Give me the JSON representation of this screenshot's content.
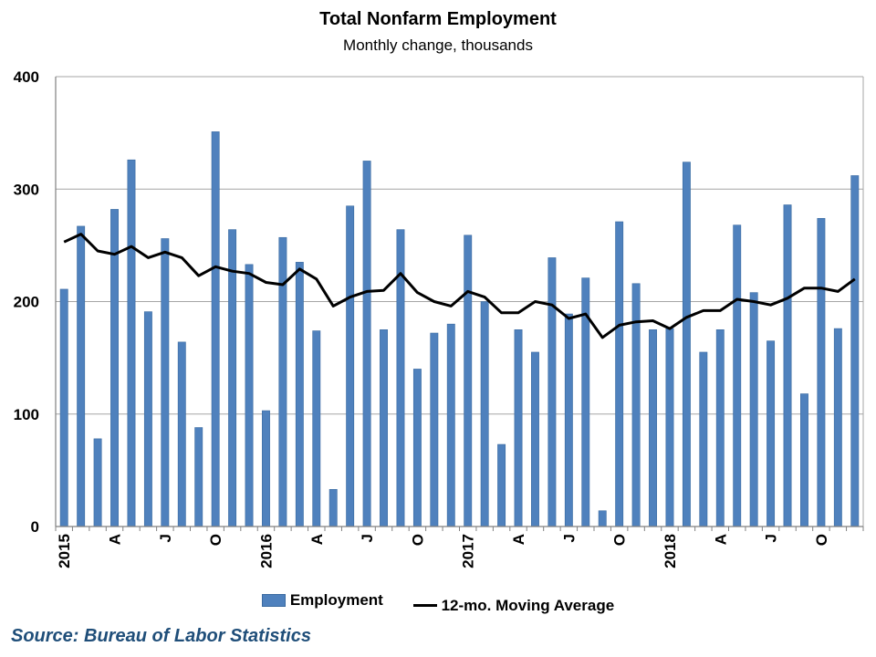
{
  "chart_data": {
    "type": "bar",
    "title": "Total Nonfarm Employment",
    "subtitle": "Monthly change, thousands",
    "xlabel": "",
    "ylabel": "",
    "ylim": [
      0,
      400
    ],
    "yticks": [
      0,
      100,
      200,
      300,
      400
    ],
    "grid": true,
    "legend_position": "bottom",
    "x_tick_labels": [
      {
        "index": 0,
        "label": "2015"
      },
      {
        "index": 3,
        "label": "A"
      },
      {
        "index": 6,
        "label": "J"
      },
      {
        "index": 9,
        "label": "O"
      },
      {
        "index": 12,
        "label": "2016"
      },
      {
        "index": 15,
        "label": "A"
      },
      {
        "index": 18,
        "label": "J"
      },
      {
        "index": 21,
        "label": "O"
      },
      {
        "index": 24,
        "label": "2017"
      },
      {
        "index": 27,
        "label": "A"
      },
      {
        "index": 30,
        "label": "J"
      },
      {
        "index": 33,
        "label": "O"
      },
      {
        "index": 36,
        "label": "2018"
      },
      {
        "index": 39,
        "label": "A"
      },
      {
        "index": 42,
        "label": "J"
      },
      {
        "index": 45,
        "label": "O"
      }
    ],
    "series": [
      {
        "name": "Employment",
        "type": "bar",
        "color": "#4f81bd",
        "values": [
          211,
          267,
          78,
          282,
          326,
          191,
          256,
          164,
          88,
          351,
          264,
          233,
          103,
          257,
          235,
          174,
          33,
          285,
          325,
          175,
          264,
          140,
          172,
          180,
          259,
          200,
          73,
          175,
          155,
          239,
          189,
          221,
          14,
          271,
          216,
          175,
          176,
          324,
          155,
          175,
          268,
          208,
          165,
          286,
          118,
          274,
          176,
          312
        ]
      },
      {
        "name": "12-mo. Moving Average",
        "type": "line",
        "color": "#000000",
        "values": [
          253,
          260,
          245,
          242,
          249,
          239,
          244,
          239,
          223,
          231,
          227,
          225,
          217,
          215,
          229,
          220,
          196,
          204,
          209,
          210,
          225,
          208,
          200,
          196,
          209,
          204,
          190,
          190,
          200,
          197,
          185,
          189,
          168,
          179,
          182,
          183,
          176,
          186,
          192,
          192,
          202,
          200,
          197,
          203,
          212,
          212,
          209,
          220
        ]
      }
    ]
  },
  "legend": {
    "bar_label": "Employment",
    "line_label": "12-mo. Moving Average"
  },
  "source": "Source: Bureau of Labor Statistics"
}
